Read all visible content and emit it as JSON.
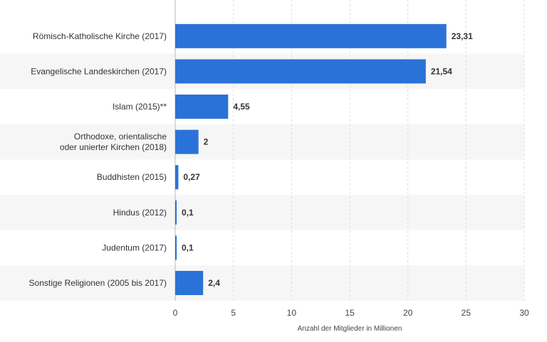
{
  "chart_data": {
    "type": "bar",
    "orientation": "horizontal",
    "categories": [
      [
        "Römisch-Katholische Kirche (2017)"
      ],
      [
        "Evangelische Landeskirchen (2017)"
      ],
      [
        "Islam (2015)**"
      ],
      [
        "Orthodoxe, orientalische",
        "oder unierter Kirchen (2018)"
      ],
      [
        "Buddhisten (2015)"
      ],
      [
        "Hindus (2012)"
      ],
      [
        "Judentum (2017)"
      ],
      [
        "Sonstige Religionen (2005 bis 2017)"
      ]
    ],
    "values": [
      23.31,
      21.54,
      4.55,
      2,
      0.27,
      0.1,
      0.1,
      2.4
    ],
    "value_labels": [
      "23,31",
      "21,54",
      "4,55",
      "2",
      "0,27",
      "0,1",
      "0,1",
      "2,4"
    ],
    "xlabel": "Anzahl der Mitglieder in Millionen",
    "xlim": [
      0,
      30
    ],
    "xticks": [
      0,
      5,
      10,
      15,
      20,
      25,
      30
    ],
    "grid": "vertical",
    "bar_color": "#2a72d7",
    "band_color": "#f6f6f6"
  }
}
